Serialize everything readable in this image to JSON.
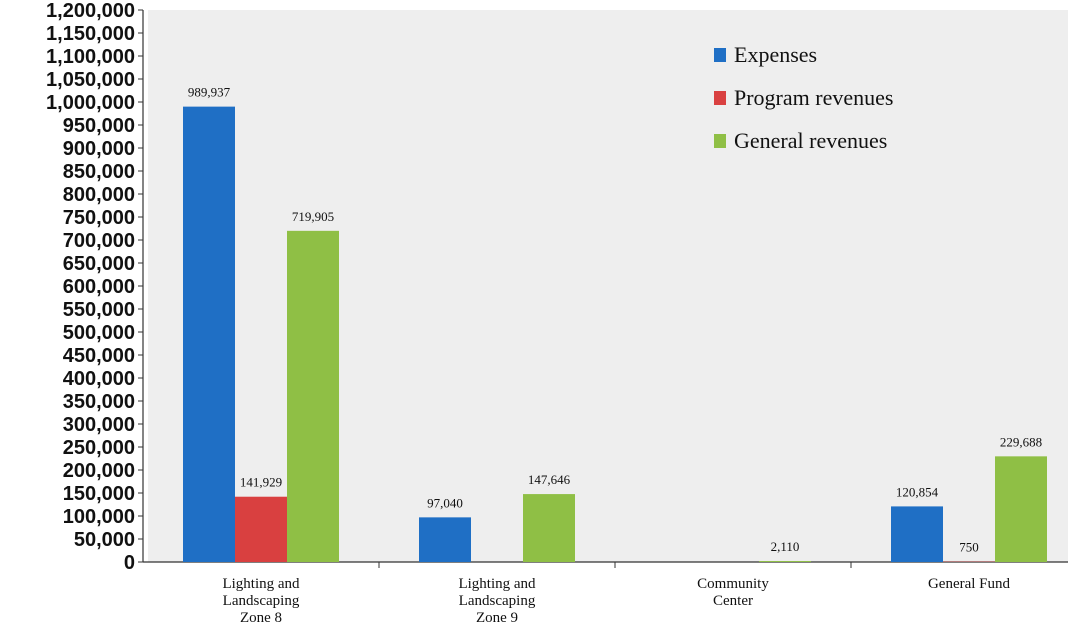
{
  "chart_data": {
    "type": "bar",
    "title": "",
    "xlabel": "",
    "ylabel": "",
    "ylim": [
      0,
      1200000
    ],
    "ytick_step": 50000,
    "grid": false,
    "legend_placement": "top-right",
    "categories": [
      [
        "Lighting and",
        "Landscaping",
        "Zone 8"
      ],
      [
        "Lighting and",
        "Landscaping",
        "Zone 9"
      ],
      [
        "Community",
        "Center"
      ],
      [
        "General Fund"
      ]
    ],
    "series": [
      {
        "name": "Expenses",
        "color": "#1f6fc5",
        "values": [
          989937,
          97040,
          null,
          120854
        ],
        "labels": [
          "989,937",
          "97,040",
          "",
          "120,854"
        ]
      },
      {
        "name": "Program revenues",
        "color": "#d94040",
        "values": [
          141929,
          null,
          null,
          750
        ],
        "labels": [
          "141,929",
          "",
          "",
          "750"
        ]
      },
      {
        "name": "General revenues",
        "color": "#8fbf45",
        "values": [
          719905,
          147646,
          2110,
          229688
        ],
        "labels": [
          "719,905",
          "147,646",
          "2,110",
          "229,688"
        ]
      }
    ]
  }
}
